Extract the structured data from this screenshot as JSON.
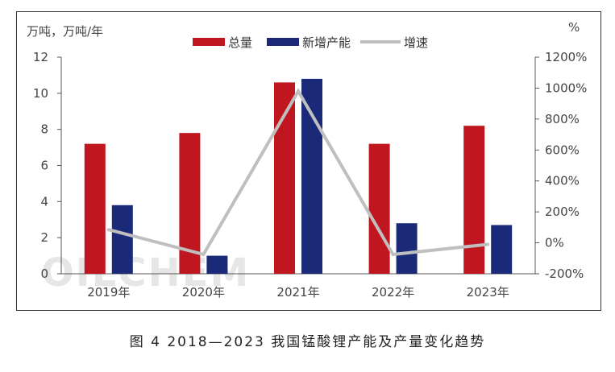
{
  "caption": "图 4  2018—2023 我国锰酸锂产能及产量变化趋势",
  "watermark": "OILCHEM",
  "chart_data": {
    "type": "bar",
    "categories": [
      "2019年",
      "2020年",
      "2021年",
      "2022年",
      "2023年"
    ],
    "series": [
      {
        "name": "总量",
        "type": "bar",
        "axis": "left",
        "color": "#c0161f",
        "values": [
          7.2,
          7.8,
          10.6,
          7.2,
          8.2
        ]
      },
      {
        "name": "新增产能",
        "type": "bar",
        "axis": "left",
        "color": "#1a2a78",
        "values": [
          3.8,
          1.0,
          10.8,
          2.8,
          2.7
        ]
      },
      {
        "name": "增速",
        "type": "line",
        "axis": "right",
        "color": "#bfbfbf",
        "values": [
          85,
          -75,
          980,
          -75,
          -10
        ]
      }
    ],
    "ylabel_left": "万吨，万吨/年",
    "ylabel_right": "%",
    "ylim_left": [
      0,
      12
    ],
    "yticks_left": [
      "0",
      "2",
      "4",
      "6",
      "8",
      "10",
      "12"
    ],
    "ylim_right": [
      -200,
      1200
    ],
    "yticks_right": [
      "-200%",
      "0%",
      "200%",
      "400%",
      "600%",
      "800%",
      "1000%",
      "1200%"
    ],
    "legend_position": "top-center",
    "grid": false
  }
}
